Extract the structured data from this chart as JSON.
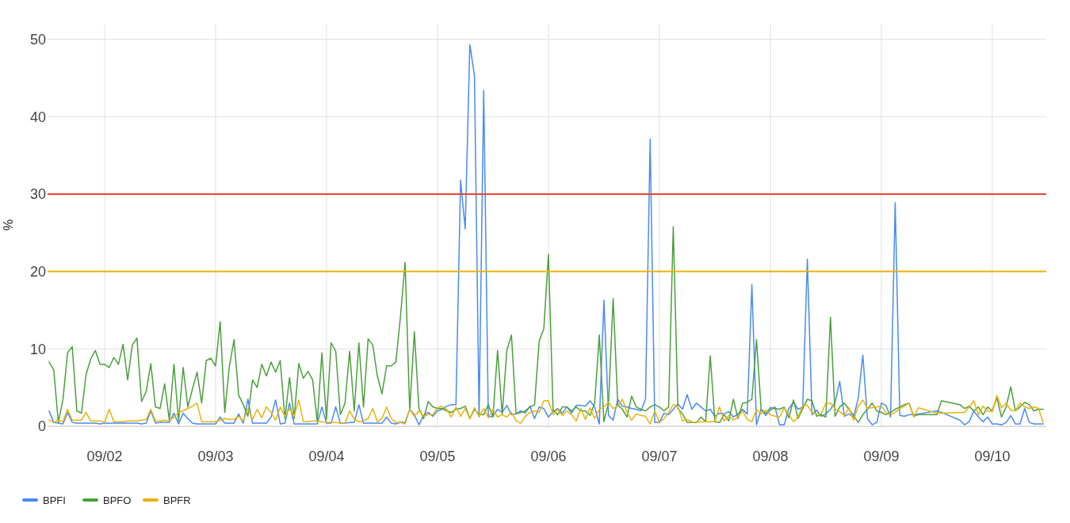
{
  "chart_data": {
    "type": "line",
    "ylabel": "%",
    "x": [
      "--09-01T12:00",
      "--09-01T13:00",
      "--09-01T14:00",
      "--09-01T15:00",
      "--09-01T16:00",
      "--09-01T17:00",
      "--09-01T18:00",
      "--09-01T19:00",
      "--09-01T20:00",
      "--09-01T21:00",
      "--09-01T22:00",
      "--09-01T23:00",
      "--09-02T00:00",
      "--09-02T01:00",
      "--09-02T02:00",
      "--09-02T03:00",
      "--09-02T04:00",
      "--09-02T05:00",
      "--09-02T06:00",
      "--09-02T07:00",
      "--09-02T08:00",
      "--09-02T09:00",
      "--09-02T10:00",
      "--09-02T11:00",
      "--09-02T12:00",
      "--09-02T13:00",
      "--09-02T14:00",
      "--09-02T15:00",
      "--09-02T16:00",
      "--09-02T17:00",
      "--09-02T18:00",
      "--09-02T19:00",
      "--09-02T20:00",
      "--09-02T21:00",
      "--09-02T22:00",
      "--09-02T23:00",
      "--09-03T00:00",
      "--09-03T01:00",
      "--09-03T02:00",
      "--09-03T03:00",
      "--09-03T04:00",
      "--09-03T05:00",
      "--09-03T06:00",
      "--09-03T07:00",
      "--09-03T08:00",
      "--09-03T09:00",
      "--09-03T10:00",
      "--09-03T11:00",
      "--09-03T12:00",
      "--09-03T13:00",
      "--09-03T14:00",
      "--09-03T15:00",
      "--09-03T16:00",
      "--09-03T17:00",
      "--09-03T18:00",
      "--09-03T19:00",
      "--09-03T20:00",
      "--09-03T21:00",
      "--09-03T22:00",
      "--09-03T23:00",
      "--09-04T00:00",
      "--09-04T01:00",
      "--09-04T02:00",
      "--09-04T03:00",
      "--09-04T04:00",
      "--09-04T05:00",
      "--09-04T06:00",
      "--09-04T07:00",
      "--09-04T08:00",
      "--09-04T09:00",
      "--09-04T10:00",
      "--09-04T11:00",
      "--09-04T12:00",
      "--09-04T13:00",
      "--09-04T14:00",
      "--09-04T15:00",
      "--09-04T16:00",
      "--09-04T17:00",
      "--09-04T18:00",
      "--09-04T19:00",
      "--09-04T20:00",
      "--09-04T21:00",
      "--09-04T22:00",
      "--09-04T23:00",
      "--09-05T00:00",
      "--09-05T01:00",
      "--09-05T02:00",
      "--09-05T03:00",
      "--09-05T04:00",
      "--09-05T05:00",
      "--09-05T06:00",
      "--09-05T07:00",
      "--09-05T08:00",
      "--09-05T09:00",
      "--09-05T10:00",
      "--09-05T11:00",
      "--09-05T12:00",
      "--09-05T13:00",
      "--09-05T14:00",
      "--09-05T15:00",
      "--09-05T16:00",
      "--09-05T17:00",
      "--09-05T18:00",
      "--09-05T19:00",
      "--09-05T20:00",
      "--09-05T21:00",
      "--09-05T22:00",
      "--09-05T23:00",
      "--09-06T00:00",
      "--09-06T01:00",
      "--09-06T02:00",
      "--09-06T03:00",
      "--09-06T04:00",
      "--09-06T05:00",
      "--09-06T06:00",
      "--09-06T07:00",
      "--09-06T08:00",
      "--09-06T09:00",
      "--09-06T10:00",
      "--09-06T11:00",
      "--09-06T12:00",
      "--09-06T13:00",
      "--09-06T14:00",
      "--09-06T15:00",
      "--09-06T16:00",
      "--09-06T17:00",
      "--09-06T18:00",
      "--09-06T19:00",
      "--09-06T20:00",
      "--09-06T21:00",
      "--09-06T22:00",
      "--09-06T23:00",
      "--09-07T00:00",
      "--09-07T01:00",
      "--09-07T02:00",
      "--09-07T03:00",
      "--09-07T04:00",
      "--09-07T05:00",
      "--09-07T06:00",
      "--09-07T07:00",
      "--09-07T08:00",
      "--09-07T09:00",
      "--09-07T10:00",
      "--09-07T11:00",
      "--09-07T12:00",
      "--09-07T13:00",
      "--09-07T14:00",
      "--09-07T15:00",
      "--09-07T16:00",
      "--09-07T17:00",
      "--09-07T18:00",
      "--09-07T19:00",
      "--09-07T20:00",
      "--09-07T21:00",
      "--09-07T22:00",
      "--09-07T23:00",
      "--09-08T00:00",
      "--09-08T01:00",
      "--09-08T02:00",
      "--09-08T03:00",
      "--09-08T04:00",
      "--09-08T05:00",
      "--09-08T06:00",
      "--09-08T07:00",
      "--09-08T08:00",
      "--09-08T09:00",
      "--09-08T10:00",
      "--09-08T11:00",
      "--09-08T12:00",
      "--09-08T13:00",
      "--09-08T14:00",
      "--09-08T15:00",
      "--09-08T16:00",
      "--09-08T17:00",
      "--09-08T18:00",
      "--09-08T19:00",
      "--09-08T20:00",
      "--09-08T21:00",
      "--09-08T22:00",
      "--09-08T23:00",
      "--09-09T00:00",
      "--09-09T01:00",
      "--09-09T02:00",
      "--09-09T03:00",
      "--09-09T04:00",
      "--09-09T05:00",
      "--09-09T06:00",
      "--09-09T07:00",
      "--09-09T08:00",
      "--09-09T12:00",
      "--09-09T13:00",
      "--09-09T17:00",
      "--09-09T18:00",
      "--09-09T19:00",
      "--09-09T20:00",
      "--09-09T21:00",
      "--09-09T22:00",
      "--09-09T23:00",
      "--09-10T00:00",
      "--09-10T01:00",
      "--09-10T02:00",
      "--09-10T03:00",
      "--09-10T04:00",
      "--09-10T05:00",
      "--09-10T06:00",
      "--09-10T07:00",
      "--09-10T08:00",
      "--09-10T09:00",
      "--09-10T10:00",
      "--09-10T11:00"
    ],
    "series": [
      {
        "name": "BPFI",
        "color": "#4a8af4",
        "values": [
          2,
          0.5,
          0.4,
          0.3,
          1.8,
          0.5,
          0.4,
          0.4,
          0.4,
          0.4,
          0.4,
          0.3,
          0.4,
          0.4,
          0.4,
          0.4,
          0.4,
          0.4,
          0.4,
          0.4,
          0.3,
          0.4,
          2,
          0.4,
          0.5,
          0.5,
          0.5,
          1.7,
          0.3,
          1.7,
          1,
          0.4,
          0.3,
          0.3,
          0.3,
          0.3,
          0.3,
          1.2,
          0.4,
          0.4,
          0.4,
          1.6,
          0.4,
          3.5,
          0.4,
          0.4,
          0.4,
          0.4,
          1.2,
          3.4,
          0.3,
          0.4,
          3,
          0.3,
          0.3,
          0.3,
          0.3,
          0.3,
          0.3,
          2.5,
          0.4,
          0.4,
          2.5,
          0.4,
          0.4,
          0.5,
          0.5,
          2.8,
          0.4,
          0.4,
          0.4,
          0.4,
          0.4,
          1.2,
          0.4,
          0.3,
          0.5,
          0.5,
          2.2,
          1.5,
          0.2,
          1.4,
          1.8,
          1.3,
          2.0,
          2.2,
          2.6,
          2.8,
          2.8,
          31.8,
          25.5,
          49.3,
          45.3,
          1.2,
          43.4,
          1.2,
          1.3,
          2.2,
          1.8,
          2.7,
          1.5,
          1.6,
          2,
          1.7,
          2.6,
          1,
          2.5,
          2.3,
          1.2,
          1.9,
          2.3,
          1.7,
          2.5,
          1.7,
          2.7,
          2.7,
          2.6,
          3.3,
          2.5,
          0.3,
          16.3,
          1.4,
          0.8,
          3.5,
          2.6,
          2.5,
          2.3,
          2.2,
          2,
          3.5,
          37.1,
          0.5,
          0.5,
          1.7,
          1.5,
          2.2,
          2.9,
          2.2,
          4.1,
          2.2,
          3,
          2.5,
          2,
          2.2,
          1.3,
          1.7,
          1.6,
          1.9,
          1.2,
          1.6,
          2.2,
          1.6,
          18.3,
          0.2,
          2.2,
          1.4,
          2.1,
          2.5,
          0.2,
          0.2,
          2.3,
          3.1,
          2.2,
          2.5,
          21.6,
          1.5,
          2.1,
          1.3,
          1.6,
          2.2,
          3.1,
          5.8,
          1.3,
          1.6,
          1.2,
          3.6,
          9.2,
          1,
          0.2,
          0.5,
          3.0,
          2.7,
          1.2,
          28.9,
          1.4,
          1.3,
          1.5,
          1.5,
          1.6,
          2,
          1.8,
          0.8,
          0.2,
          0.6,
          2,
          1.2,
          0.6,
          1.2,
          0.3,
          0.3,
          0.2,
          0.5,
          1.4,
          0.3,
          0.3,
          2.3,
          0.5,
          0.3,
          0.3,
          0.3
        ]
      },
      {
        "name": "BPFO",
        "color": "#4c9f3c",
        "values": [
          8.3,
          7.3,
          0.5,
          3.5,
          9.5,
          10.3,
          2,
          1.7,
          6.7,
          8.7,
          9.8,
          8,
          8,
          7.6,
          8.9,
          8,
          10.6,
          6,
          10.5,
          11.4,
          3.2,
          4.5,
          8.1,
          2.5,
          2.3,
          5.5,
          0.8,
          8,
          0.7,
          7.6,
          2.5,
          4.8,
          7,
          3,
          8.5,
          8.8,
          7.8,
          13.5,
          1.8,
          7.8,
          11.2,
          4,
          2.8,
          1.3,
          6,
          5,
          8,
          6.5,
          8.3,
          7,
          8.5,
          1,
          6.3,
          1,
          8.1,
          6.2,
          7.1,
          6,
          0.6,
          9.5,
          0.9,
          10.8,
          9.7,
          1.5,
          3,
          9.7,
          2,
          10.8,
          2.5,
          11.3,
          10.5,
          6.5,
          4.2,
          7.8,
          7.8,
          8.3,
          14.2,
          21.2,
          2,
          12.2,
          2.3,
          1,
          3.2,
          2.5,
          2.3,
          2.3,
          2,
          1.8,
          2.2,
          2.3,
          2.6,
          1,
          2.2,
          1.5,
          1.5,
          2.8,
          1.2,
          9.8,
          1.5,
          9.8,
          11.8,
          1.6,
          1.8,
          2,
          2.5,
          2.8,
          11,
          12.6,
          22.2,
          2.1,
          1.5,
          2.5,
          2.5,
          2,
          2.5,
          2,
          2,
          1.4,
          3,
          11.8,
          0.6,
          3,
          16.5,
          2.8,
          2.2,
          1.2,
          3.9,
          2.5,
          2.2,
          2,
          2.5,
          2.8,
          2.5,
          2,
          2.5,
          25.8,
          2.3,
          1.6,
          0.5,
          0.5,
          0.5,
          1.2,
          0.6,
          9.1,
          0.6,
          0.5,
          1.5,
          0.7,
          3.5,
          1,
          3,
          3.1,
          3.5,
          11.2,
          2.2,
          1.7,
          2.4,
          2.3,
          2.2,
          2.5,
          1.1,
          3.4,
          1,
          2.3,
          3.5,
          3.3,
          1.3,
          1.5,
          1.2,
          14.1,
          1.3,
          2.5,
          3,
          2.2,
          1.4,
          0.5,
          1.5,
          2.2,
          3,
          2,
          1.8,
          1.5,
          1.8,
          2.2,
          2.5,
          2.8,
          3,
          1.3,
          1.5,
          1.5,
          3.3,
          2.8,
          2.3,
          2.6,
          2,
          2.5,
          1.5,
          2.5,
          2.0,
          3.7,
          1.2,
          2.5,
          5.1,
          2,
          2.5,
          3.1,
          2.8,
          2,
          2.2,
          2.2
        ]
      },
      {
        "name": "BPFR",
        "color": "#e8b30a",
        "values": [
          0.8,
          0.5,
          0.8,
          0.6,
          2.2,
          0.8,
          0.8,
          0.8,
          1.8,
          0.7,
          0.7,
          0.7,
          0.5,
          2.2,
          0.6,
          0.6,
          0.6,
          0.7,
          0.7,
          0.7,
          0.8,
          0.9,
          2.2,
          0.7,
          0.7,
          0.8,
          0.7,
          1.2,
          1.8,
          2,
          2.3,
          2.6,
          3,
          0.6,
          0.6,
          0.6,
          0.6,
          0.8,
          1.0,
          0.9,
          0.9,
          1.3,
          0.7,
          2.3,
          0.9,
          2.2,
          1.1,
          2.5,
          1.8,
          0.8,
          2.5,
          1.3,
          2.3,
          1.3,
          3.4,
          0.6,
          0.6,
          0.7,
          0.7,
          0.6,
          0.5,
          0.5,
          0.5,
          0.4,
          0.4,
          2.0,
          0.9,
          0.6,
          0.7,
          1.0,
          2.3,
          0.6,
          1.0,
          2.5,
          1.0,
          0.5,
          0.5,
          0.3,
          2.2,
          1.3,
          2,
          1.3,
          1.5,
          1.5,
          2.4,
          2.6,
          2.2,
          1.2,
          2.5,
          1.3,
          2.3,
          1.0,
          2.4,
          1.3,
          2.3,
          1.1,
          2.2,
          1.2,
          1.5,
          1.2,
          1.8,
          0.7,
          0.4,
          1.3,
          1.8,
          2,
          1.8,
          3.3,
          3.3,
          1.5,
          2.2,
          1.4,
          2,
          1.5,
          0.7,
          2.3,
          0.9,
          2.4,
          1.0,
          2.2,
          2.5,
          3.1,
          2.3,
          2.6,
          3.5,
          1.8,
          0.8,
          1.6,
          1.4,
          1.3,
          0.3,
          2,
          0.5,
          1,
          1.8,
          2.8,
          2.6,
          0.7,
          0.9,
          0.6,
          0.5,
          0.6,
          0.6,
          0.6,
          0.6,
          2.5,
          0.7,
          1.4,
          0.8,
          1.2,
          2,
          0.9,
          0.6,
          2.2,
          1.6,
          2.1,
          1.5,
          1.3,
          1.2,
          2.4,
          1.5,
          0.6,
          1.2,
          2.7,
          2.7,
          1.8,
          1.6,
          1.6,
          3.0,
          3.0,
          2.3,
          1.9,
          1.4,
          2.4,
          0.8,
          2.6,
          3.4,
          2.3,
          2.4,
          2.5,
          2.6,
          1.8,
          1.5,
          1.8,
          2.3,
          2.6,
          3,
          1.2,
          2.4,
          1.7,
          1.7,
          1.8,
          1.8,
          2.5,
          3.3,
          1.5,
          2.6,
          2,
          1.9,
          4.0,
          2.4,
          3,
          2.1,
          2,
          3,
          2.5,
          2.3,
          2.5,
          2.3,
          0.5
        ]
      }
    ],
    "xlim": [
      "--09-01T11:40",
      "--09-10T11:40"
    ],
    "xticks": [
      {
        "value": "--09-02",
        "label": "09/02"
      },
      {
        "value": "--09-03",
        "label": "09/03"
      },
      {
        "value": "--09-04",
        "label": "09/04"
      },
      {
        "value": "--09-05",
        "label": "09/05"
      },
      {
        "value": "--09-06",
        "label": "09/06"
      },
      {
        "value": "--09-07",
        "label": "09/07"
      },
      {
        "value": "--09-08",
        "label": "09/08"
      },
      {
        "value": "--09-09",
        "label": "09/09"
      },
      {
        "value": "--09-10",
        "label": "09/10"
      }
    ],
    "ylim": [
      0,
      52
    ],
    "yticks": [
      0,
      10,
      20,
      30,
      40,
      50
    ],
    "ref_lines": [
      {
        "axis": "y",
        "value": 30,
        "color": "#ea4335"
      },
      {
        "axis": "y",
        "value": 20,
        "color": "#e8b30a"
      }
    ],
    "grid": true,
    "legend": "bottom left",
    "line_style": "solid",
    "marker": "none"
  }
}
